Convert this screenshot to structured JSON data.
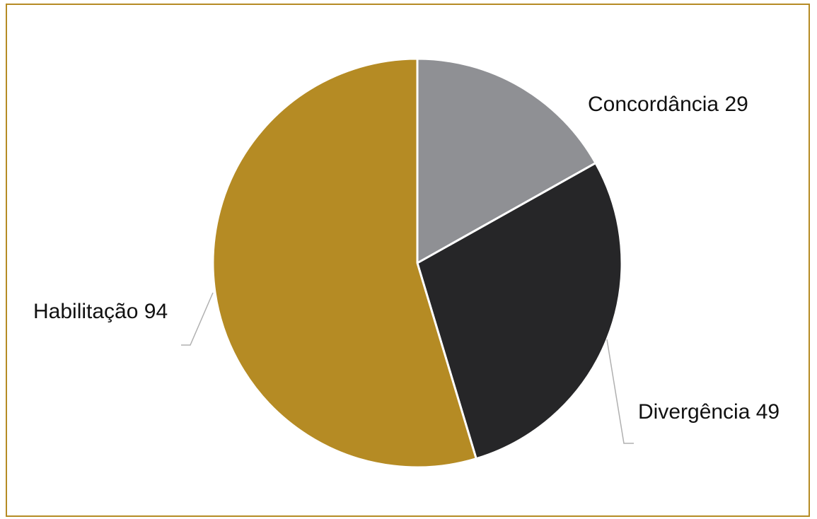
{
  "chart_data": {
    "type": "pie",
    "slices": [
      {
        "label": "Concordância",
        "value": 29,
        "display": "Concordância 29",
        "color": "#8f9094"
      },
      {
        "label": "Divergência",
        "value": 49,
        "display": "Divergência 49",
        "color": "#262628"
      },
      {
        "label": "Habilitação",
        "value": 94,
        "display": "Habilitação 94",
        "color": "#b58b24"
      }
    ],
    "start_angle_deg": 0,
    "direction": "clockwise",
    "legend": "none",
    "data_labels": "outside with leader lines"
  },
  "colors": {
    "frame_border": "#b58b24",
    "slice_border": "#ffffff",
    "leader_line": "#b0b0b0"
  }
}
